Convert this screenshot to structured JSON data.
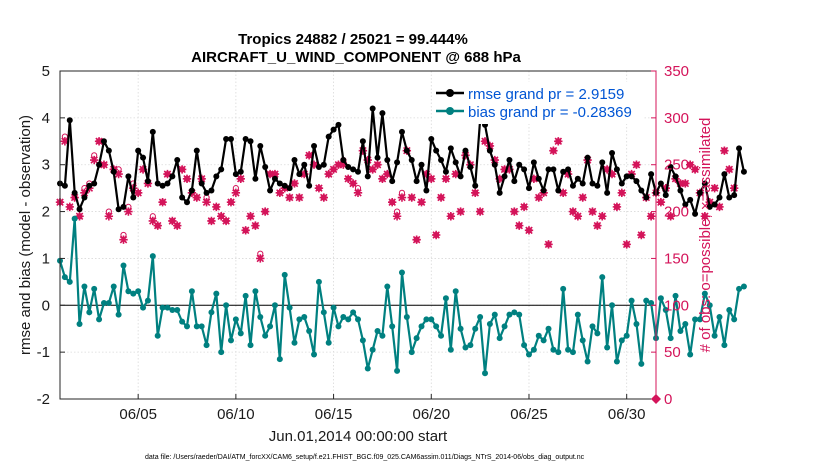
{
  "chart_data": {
    "type": "line",
    "title_line1": "Tropics 24882 / 25021 = 99.444%",
    "title_line2": "AIRCRAFT_U_WIND_COMPONENT @ 688 hPa",
    "xlabel": "Jun.01,2014 00:00:00 start",
    "ylabel": "rmse and bias (model - observation)",
    "ylabel_right": "# of obs: o=possible; ×=assimilated",
    "footnote": "data file: /Users/raeder/DAI/ATM_forcXX/CAM6_setup/f.e21.FHIST_BGC.f09_025.CAM6assim.011/Diags_NTrS_2014-06/obs_diag_output.nc",
    "xlim": [
      1,
      31.5
    ],
    "ylim": [
      -2,
      5
    ],
    "ylim_right": [
      0,
      350
    ],
    "x_ticks": [
      5,
      10,
      15,
      20,
      25,
      30
    ],
    "x_tick_labels": [
      "06/05",
      "06/10",
      "06/15",
      "06/20",
      "06/25",
      "06/30"
    ],
    "y_ticks": [
      "-2",
      "-1",
      "0",
      "1",
      "2",
      "3",
      "4",
      "5"
    ],
    "y_ticks_right": [
      "0",
      "50",
      "100",
      "150",
      "200",
      "250",
      "300",
      "350"
    ],
    "zero_line": 0,
    "grid": true,
    "legend": [
      {
        "name": "rmse grand pr = 2.9159",
        "color": "#000000"
      },
      {
        "name": "bias grand pr = -0.28369",
        "color": "#008080"
      }
    ],
    "x_start": 1.0,
    "x_step": 0.25,
    "rmse": [
      2.6,
      2.55,
      3.95,
      2.4,
      2.05,
      2.3,
      2.55,
      2.6,
      3.0,
      3.5,
      3.3,
      2.85,
      2.05,
      2.1,
      2.75,
      2.3,
      3.3,
      3.15,
      2.65,
      3.7,
      2.6,
      2.55,
      2.6,
      2.75,
      3.1,
      2.3,
      2.2,
      2.45,
      3.3,
      2.6,
      2.4,
      2.45,
      2.75,
      2.9,
      3.55,
      3.55,
      2.8,
      2.85,
      3.55,
      3.5,
      2.7,
      3.4,
      2.95,
      2.45,
      2.7,
      2.6,
      2.55,
      2.5,
      3.1,
      2.8,
      3.0,
      2.55,
      3.4,
      2.95,
      3.0,
      3.6,
      3.75,
      3.85,
      3.1,
      2.95,
      2.9,
      2.85,
      3.5,
      2.75,
      4.2,
      3.15,
      4.1,
      3.1,
      2.65,
      3.05,
      3.7,
      3.3,
      3.1,
      2.65,
      3.0,
      2.45,
      3.55,
      3.3,
      3.1,
      2.85,
      3.35,
      3.05,
      2.75,
      3.3,
      2.95,
      2.55,
      3.95,
      3.85,
      3.3,
      3.0,
      2.4,
      2.75,
      3.1,
      2.65,
      3.0,
      2.9,
      2.5,
      3.05,
      2.7,
      2.45,
      2.9,
      2.9,
      2.45,
      2.85,
      2.9,
      2.55,
      2.7,
      2.6,
      3.15,
      2.6,
      2.55,
      3.05,
      2.4,
      3.25,
      2.9,
      2.6,
      2.75,
      2.75,
      2.65,
      2.45,
      2.3,
      2.8,
      2.4,
      2.6,
      2.35,
      2.95,
      2.75,
      2.45,
      2.15,
      2.25,
      1.95,
      2.4,
      2.6,
      2.1,
      2.15,
      2.3,
      2.8,
      2.3,
      2.35,
      3.35,
      2.85
    ],
    "bias": [
      0.95,
      0.6,
      0.5,
      1.85,
      -0.4,
      0.4,
      -0.15,
      0.35,
      -0.3,
      0.05,
      0.05,
      0.4,
      -0.2,
      0.85,
      0.3,
      0.25,
      0.3,
      -0.05,
      0.1,
      1.05,
      -0.65,
      -0.05,
      -0.05,
      -0.1,
      -0.1,
      -0.35,
      -0.45,
      0.3,
      -0.45,
      -0.45,
      -0.85,
      -0.15,
      0.25,
      -1.0,
      0.0,
      -0.75,
      -0.3,
      -0.6,
      0.2,
      -0.85,
      0.3,
      -0.25,
      -0.65,
      -0.45,
      0.0,
      -1.15,
      0.65,
      -0.05,
      -0.8,
      -0.3,
      -0.25,
      -0.55,
      -1.05,
      0.5,
      -0.15,
      -0.8,
      -0.05,
      -0.45,
      -0.25,
      -0.3,
      -0.15,
      -0.3,
      -0.75,
      -1.35,
      -0.95,
      -0.55,
      -0.65,
      0.4,
      -0.45,
      -1.4,
      0.7,
      -0.25,
      -1.0,
      -0.7,
      -0.45,
      -0.3,
      -0.3,
      -0.45,
      -0.65,
      0.15,
      -0.95,
      0.3,
      -0.5,
      -0.9,
      -0.85,
      -0.5,
      -0.25,
      -1.45,
      -0.4,
      -0.2,
      -0.7,
      -0.45,
      -0.2,
      -0.15,
      -0.2,
      -0.85,
      -1.05,
      -0.95,
      -0.65,
      -0.75,
      -0.5,
      -0.95,
      -1.0,
      0.35,
      -0.95,
      -1.0,
      -0.2,
      -0.75,
      -1.2,
      -0.45,
      -0.6,
      0.6,
      -0.9,
      0.0,
      -1.2,
      -0.75,
      -0.65,
      0.1,
      -0.4,
      -1.25,
      0.1,
      0.05,
      -0.7,
      0.15,
      -0.1,
      -0.7,
      0.2,
      -0.55,
      -0.4,
      -1.05,
      -0.3,
      -0.3,
      0.25,
      0.0,
      -0.65,
      -0.25,
      -0.85,
      -0.1,
      -0.3,
      0.35,
      0.4
    ],
    "obs_assimilated": [
      210,
      275,
      205,
      215,
      195,
      220,
      225,
      255,
      275,
      250,
      195,
      245,
      240,
      170,
      200,
      225,
      220,
      245,
      230,
      190,
      185,
      210,
      240,
      190,
      185,
      245,
      235,
      220,
      215,
      235,
      210,
      190,
      205,
      195,
      190,
      210,
      220,
      235,
      180,
      195,
      185,
      150,
      200,
      240,
      240,
      220,
      225,
      215,
      230,
      215,
      240,
      260,
      250,
      225,
      215,
      240,
      245,
      250,
      250,
      235,
      230,
      220,
      265,
      255,
      245,
      250,
      235,
      240,
      210,
      195,
      215,
      265,
      215,
      170,
      210,
      240,
      235,
      175,
      215,
      235,
      195,
      240,
      200,
      260,
      250,
      220,
      200,
      275,
      270,
      255,
      235,
      245,
      245,
      200,
      185,
      205,
      180,
      235,
      215,
      220,
      165,
      265,
      275,
      220,
      240,
      200,
      195,
      215,
      255,
      200,
      185,
      195,
      245,
      240,
      205,
      220,
      165,
      240,
      250,
      175,
      215,
      195,
      220,
      210,
      225,
      195,
      235,
      230,
      230,
      250,
      245,
      220,
      195,
      210,
      225,
      205,
      265,
      245,
      225
    ],
    "obs_possible": [
      210,
      280,
      205,
      215,
      195,
      225,
      230,
      260,
      275,
      250,
      200,
      245,
      245,
      175,
      205,
      230,
      220,
      245,
      230,
      195,
      185,
      210,
      240,
      190,
      185,
      245,
      235,
      220,
      215,
      235,
      215,
      190,
      205,
      195,
      190,
      210,
      225,
      235,
      180,
      195,
      185,
      155,
      200,
      240,
      240,
      220,
      225,
      215,
      230,
      215,
      240,
      260,
      250,
      225,
      215,
      240,
      245,
      250,
      255,
      235,
      230,
      225,
      265,
      255,
      245,
      250,
      235,
      240,
      210,
      200,
      220,
      265,
      215,
      170,
      210,
      240,
      235,
      175,
      215,
      235,
      195,
      240,
      200,
      260,
      250,
      220,
      200,
      275,
      270,
      255,
      235,
      245,
      245,
      200,
      185,
      205,
      180,
      235,
      215,
      220,
      165,
      265,
      275,
      220,
      240,
      200,
      195,
      215,
      255,
      200,
      185,
      195,
      245,
      240,
      205,
      220,
      165,
      240,
      250,
      175,
      215,
      195,
      220,
      210,
      225,
      195,
      235,
      230,
      230,
      250,
      245,
      220,
      195,
      210,
      225,
      205,
      265,
      245,
      225
    ]
  }
}
